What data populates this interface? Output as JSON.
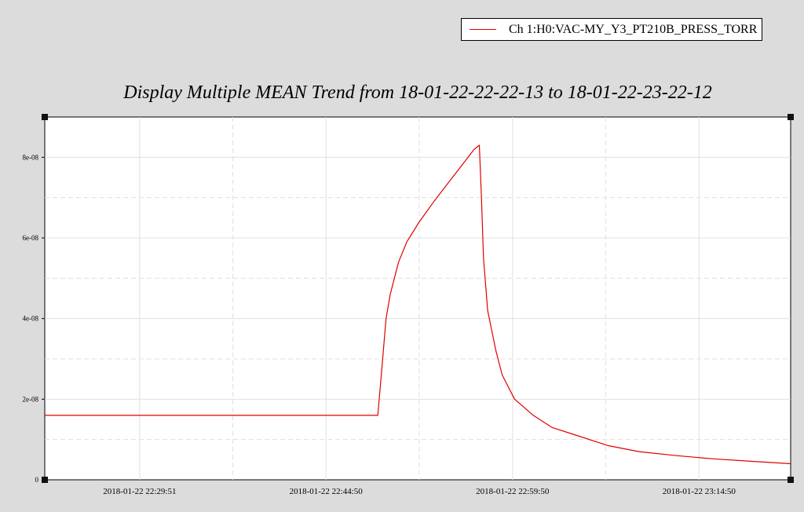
{
  "legend": {
    "label": "Ch 1:H0:VAC-MY_Y3_PT210B_PRESS_TORR",
    "color": "#e00000"
  },
  "chart_data": {
    "type": "line",
    "title": "Display Multiple MEAN Trend from 18-01-22-22-22-13 to 18-01-22-23-22-12",
    "xlabel": "",
    "ylabel": "",
    "xlim": [
      "2018-01-22 22:22:13",
      "2018-01-22 23:22:12"
    ],
    "ylim": [
      0,
      9e-08
    ],
    "x_ticks": [
      "2018-01-22 22:29:51",
      "2018-01-22 22:44:50",
      "2018-01-22 22:59:50",
      "2018-01-22 23:14:50"
    ],
    "y_ticks": [
      "0",
      "2e-08",
      "4e-08",
      "6e-08",
      "8e-08"
    ],
    "grid": true,
    "legend_position": "top-right",
    "series": [
      {
        "name": "Ch 1:H0:VAC-MY_Y3_PT210B_PRESS_TORR",
        "color": "#e00000",
        "x": [
          "2018-01-22 22:22:13",
          "2018-01-22 22:40:00",
          "2018-01-22 22:49:00",
          "2018-01-22 22:49:20",
          "2018-01-22 22:49:40",
          "2018-01-22 22:50:00",
          "2018-01-22 22:50:40",
          "2018-01-22 22:51:20",
          "2018-01-22 22:52:20",
          "2018-01-22 22:53:30",
          "2018-01-22 22:55:00",
          "2018-01-22 22:56:00",
          "2018-01-22 22:56:45",
          "2018-01-22 22:57:10",
          "2018-01-22 22:57:20",
          "2018-01-22 22:57:30",
          "2018-01-22 22:57:50",
          "2018-01-22 22:58:30",
          "2018-01-22 22:59:00",
          "2018-01-22 23:00:00",
          "2018-01-22 23:01:30",
          "2018-01-22 23:03:00",
          "2018-01-22 23:05:00",
          "2018-01-22 23:07:30",
          "2018-01-22 23:10:00",
          "2018-01-22 23:13:00",
          "2018-01-22 23:16:00",
          "2018-01-22 23:19:00",
          "2018-01-22 23:22:12"
        ],
        "y": [
          1.6e-08,
          1.6e-08,
          1.6e-08,
          2.8e-08,
          4e-08,
          4.6e-08,
          5.4e-08,
          5.9e-08,
          6.4e-08,
          6.9e-08,
          7.5e-08,
          7.9e-08,
          8.2e-08,
          8.3e-08,
          7e-08,
          5.5e-08,
          4.2e-08,
          3.2e-08,
          2.6e-08,
          2e-08,
          1.6e-08,
          1.3e-08,
          1.1e-08,
          8.5e-09,
          7e-09,
          6e-09,
          5.2e-09,
          4.6e-09,
          4e-09
        ]
      }
    ]
  }
}
